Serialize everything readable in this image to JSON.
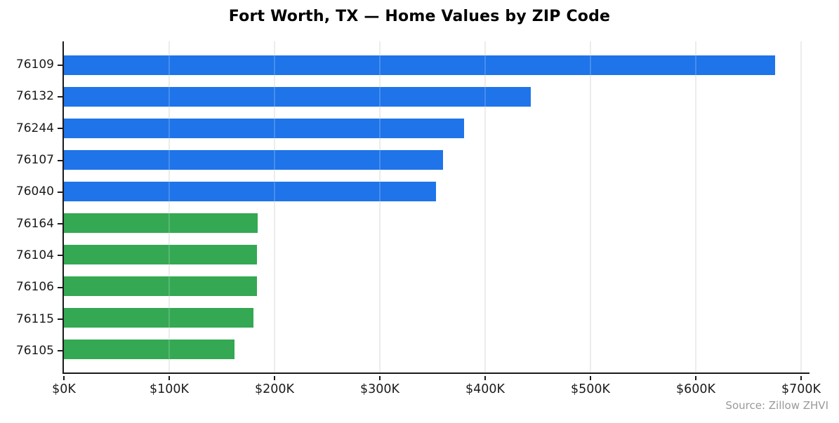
{
  "title": "Fort Worth, TX — Home Values by ZIP Code",
  "source": "Source: Zillow ZHVI",
  "colors": {
    "expensive_bar": "#1E74E8",
    "affordable_bar": "#34A853",
    "grid": "#E8E8E8",
    "axis": "#1A1A1A",
    "tick_label": "#1A1A1A",
    "source_text": "#999999"
  },
  "chart_data": {
    "type": "bar",
    "orientation": "horizontal",
    "title": "Fort Worth, TX — Home Values by ZIP Code",
    "categories": [
      "76109",
      "76132",
      "76244",
      "76107",
      "76040",
      "76164",
      "76104",
      "76106",
      "76115",
      "76105"
    ],
    "values": [
      675,
      443,
      380,
      360,
      353,
      184,
      183,
      183,
      180,
      162
    ],
    "values_unit": "USD thousands",
    "bar_colors": [
      "#1E74E8",
      "#1E74E8",
      "#1E74E8",
      "#1E74E8",
      "#1E74E8",
      "#34A853",
      "#34A853",
      "#34A853",
      "#34A853",
      "#34A853"
    ],
    "x_tick_labels": [
      "$0K",
      "$100K",
      "$200K",
      "$300K",
      "$400K",
      "$500K",
      "$600K",
      "$700K"
    ],
    "x_tick_values": [
      0,
      100,
      200,
      300,
      400,
      500,
      600,
      700
    ],
    "xlim": [
      0,
      708
    ],
    "xlabel": "",
    "ylabel": "",
    "grid": true,
    "legend": false,
    "annotations": [
      "Source: Zillow ZHVI"
    ]
  }
}
